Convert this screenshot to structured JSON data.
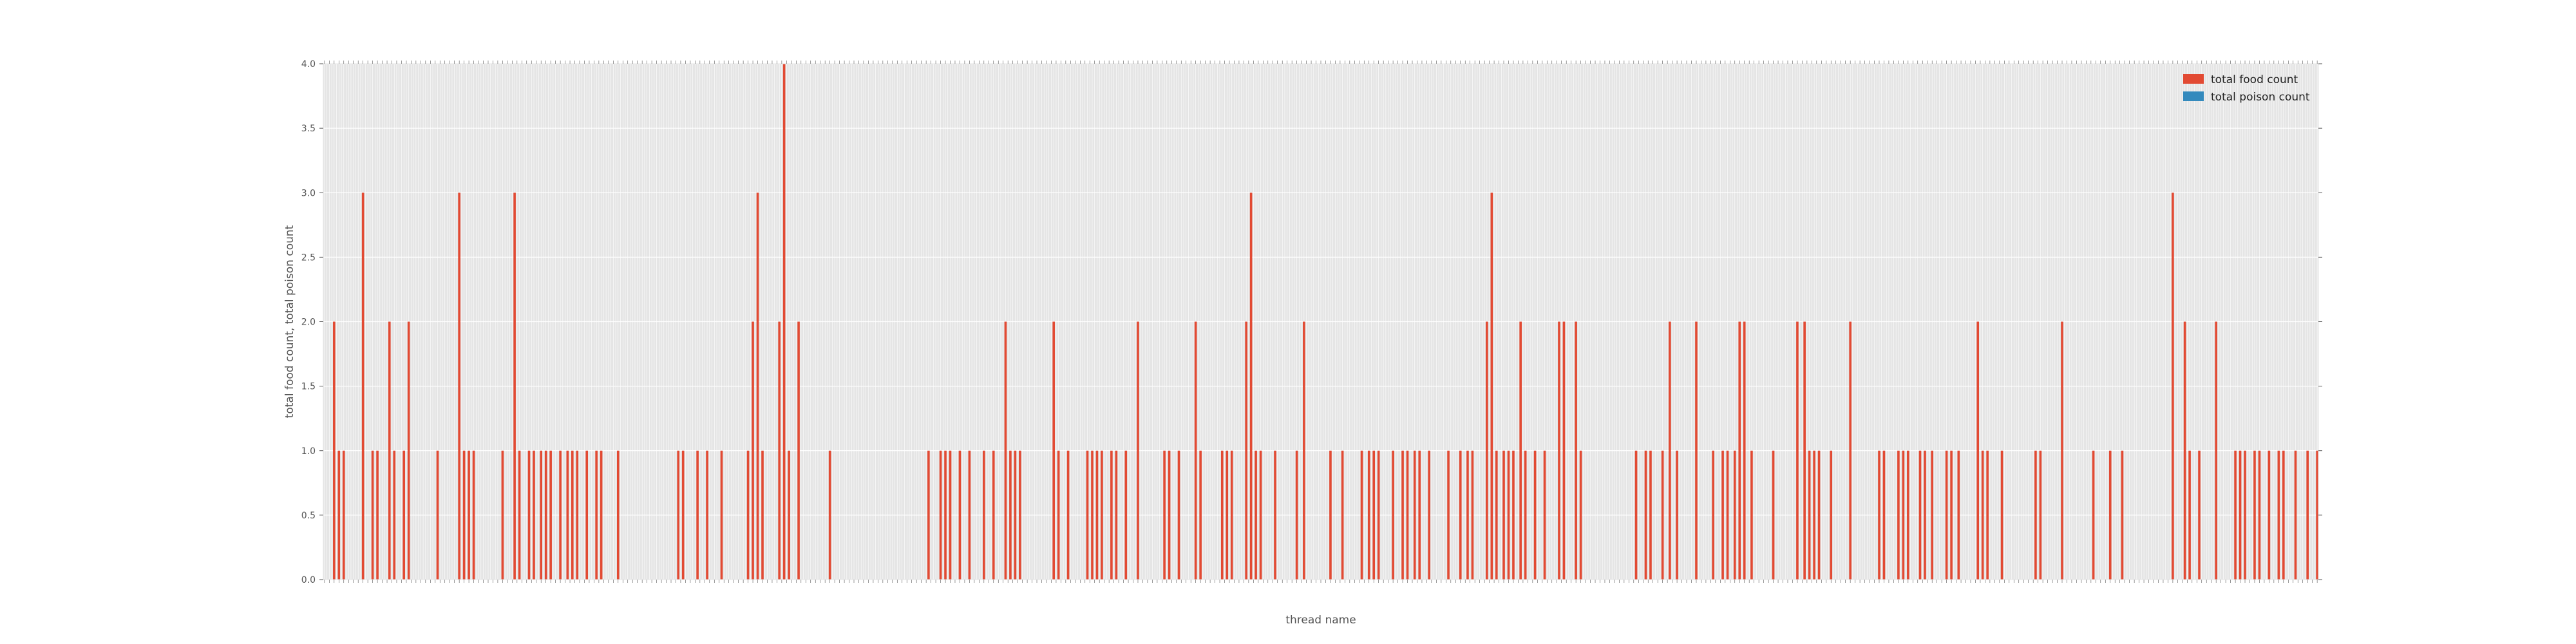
{
  "chart_data": {
    "type": "bar",
    "xlabel": "thread name",
    "ylabel": "total food count, total poison count",
    "ylim": [
      0,
      4.0
    ],
    "y_ticks": [
      "0.0",
      "0.5",
      "1.0",
      "1.5",
      "2.0",
      "2.5",
      "3.0",
      "3.5",
      "4.0"
    ],
    "grid": true,
    "legend_position": "top-right",
    "colors": {
      "total food count": "#E24A33",
      "total poison count": "#348ABD",
      "plot_bg": "#E5E5E5",
      "grid": "#FFFFFF"
    },
    "series": [
      {
        "name": "total food count",
        "values": [
          0,
          0,
          0,
          0,
          2,
          0,
          1,
          0,
          1,
          0,
          0,
          0,
          0,
          0,
          0,
          0,
          3,
          0,
          0,
          0,
          1,
          0,
          1,
          0,
          0,
          0,
          0,
          2,
          0,
          1,
          0,
          0,
          0,
          1,
          0,
          2,
          0,
          0,
          0,
          0,
          0,
          0,
          0,
          0,
          0,
          0,
          0,
          1,
          0,
          0,
          0,
          0,
          0,
          0,
          0,
          0,
          3,
          0,
          1,
          0,
          1,
          0,
          1,
          0,
          0,
          0,
          0,
          0,
          0,
          0,
          0,
          0,
          0,
          0,
          1,
          0,
          0,
          0,
          0,
          3,
          0,
          1,
          0,
          0,
          0,
          1,
          0,
          1,
          0,
          0,
          1,
          0,
          1,
          0,
          1,
          0,
          0,
          0,
          1,
          0,
          0,
          1,
          0,
          1,
          0,
          1,
          0,
          0,
          0,
          1,
          0,
          0,
          0,
          1,
          0,
          1,
          0,
          0,
          0,
          0,
          0,
          0,
          1,
          0,
          0,
          0,
          0,
          0,
          0,
          0,
          0,
          0,
          0,
          0,
          0,
          0,
          0,
          0,
          0,
          0,
          0,
          0,
          0,
          0,
          0,
          0,
          0,
          1,
          0,
          1,
          0,
          0,
          0,
          0,
          0,
          1,
          0,
          0,
          0,
          1,
          0,
          0,
          0,
          0,
          0,
          1,
          0,
          0,
          0,
          0,
          0,
          0,
          0,
          0,
          0,
          0,
          1,
          0,
          2,
          0,
          3,
          0,
          1,
          0,
          0,
          0,
          0,
          0,
          0,
          2,
          0,
          4,
          0,
          1,
          0,
          0,
          0,
          2,
          0,
          0,
          0,
          0,
          0,
          0,
          0,
          0,
          0,
          0,
          0,
          0,
          1,
          0,
          0,
          0,
          0,
          0,
          0,
          0,
          0,
          0,
          0,
          0,
          0,
          0,
          0,
          0,
          0,
          0,
          0,
          0,
          0,
          0,
          0,
          0,
          0,
          0,
          0,
          0,
          0,
          0,
          0,
          0,
          0,
          0,
          0,
          0,
          0,
          0,
          0,
          0,
          0,
          1,
          0,
          0,
          0,
          0,
          1,
          0,
          1,
          0,
          1,
          0,
          0,
          0,
          1,
          0,
          0,
          0,
          1,
          0,
          0,
          0,
          0,
          0,
          1,
          0,
          0,
          0,
          1,
          0,
          0,
          0,
          0,
          2,
          0,
          1,
          0,
          1,
          0,
          1,
          0,
          0,
          0,
          0,
          0,
          0,
          0,
          0,
          0,
          0,
          0,
          0,
          0,
          2,
          0,
          1,
          0,
          0,
          0,
          1,
          0,
          0,
          0,
          0,
          0,
          0,
          0,
          1,
          0,
          1,
          0,
          1,
          0,
          1,
          0,
          0,
          0,
          1,
          0,
          1,
          0,
          0,
          0,
          1,
          0,
          0,
          0,
          0,
          2,
          0,
          0,
          0,
          0,
          0,
          0,
          0,
          0,
          0,
          0,
          1,
          0,
          1,
          0,
          0,
          0,
          1,
          0,
          0,
          0,
          0,
          0,
          0,
          2,
          0,
          1,
          0,
          0,
          0,
          0,
          0,
          0,
          0,
          0,
          1,
          0,
          1,
          0,
          1,
          0,
          0,
          0,
          0,
          0,
          2,
          0,
          3,
          0,
          1,
          0,
          1,
          0,
          0,
          0,
          0,
          0,
          1,
          0,
          0,
          0,
          0,
          0,
          0,
          0,
          0,
          1,
          0,
          0,
          2,
          0,
          0,
          0,
          0,
          0,
          0,
          0,
          0,
          0,
          0,
          1,
          0,
          0,
          0,
          0,
          1,
          0,
          0,
          0,
          0,
          0,
          0,
          0,
          1,
          0,
          0,
          1,
          0,
          1,
          0,
          1,
          0,
          0,
          0,
          0,
          0,
          1,
          0,
          0,
          0,
          1,
          0,
          1,
          0,
          0,
          1,
          0,
          1,
          0,
          0,
          0,
          1,
          0,
          0,
          0,
          0,
          0,
          0,
          0,
          1,
          0,
          0,
          0,
          0,
          1,
          0,
          0,
          1,
          0,
          1,
          0,
          0,
          0,
          0,
          0,
          2,
          0,
          3,
          0,
          1,
          0,
          0,
          1,
          0,
          1,
          0,
          1,
          0,
          0,
          2,
          0,
          1,
          0,
          0,
          0,
          1,
          0,
          0,
          0,
          1,
          0,
          0,
          0,
          0,
          0,
          2,
          0,
          2,
          0,
          0,
          0,
          0,
          2,
          0,
          1,
          0,
          0,
          0,
          0,
          0,
          0,
          0,
          0,
          0,
          0,
          0,
          0,
          0,
          0,
          0,
          0,
          0,
          0,
          0,
          0,
          0,
          0,
          1,
          0,
          0,
          0,
          1,
          0,
          1,
          0,
          0,
          0,
          0,
          1,
          0,
          0,
          2,
          0,
          0,
          1,
          0,
          0,
          0,
          0,
          0,
          0,
          0,
          2,
          0,
          0,
          0,
          0,
          0,
          0,
          1,
          0,
          0,
          0,
          1,
          0,
          1,
          0,
          0,
          1,
          0,
          2,
          0,
          2,
          0,
          0,
          1,
          0,
          0,
          0,
          0,
          0,
          0,
          0,
          0,
          1,
          0,
          0,
          0,
          0,
          0,
          0,
          0,
          0,
          0,
          2,
          0,
          0,
          2,
          0,
          1,
          0,
          1,
          0,
          1,
          0,
          0,
          0,
          0,
          1,
          0,
          0,
          0,
          0,
          0,
          0,
          0,
          2,
          0,
          0,
          0,
          0,
          0,
          0,
          0,
          0,
          0,
          0,
          0,
          1,
          0,
          1,
          0,
          0,
          0,
          0,
          0,
          1,
          0,
          1,
          0,
          1,
          0,
          0,
          0,
          0,
          1,
          0,
          1,
          0,
          0,
          1,
          0,
          0,
          0,
          0,
          0,
          1,
          0,
          1,
          0,
          0,
          1,
          0,
          0,
          0,
          0,
          0,
          0,
          0,
          2,
          0,
          1,
          0,
          1,
          0,
          0,
          0,
          0,
          0,
          1,
          0,
          0,
          0,
          0,
          0,
          0,
          0,
          0,
          0,
          0,
          0,
          0,
          0,
          1,
          0,
          1,
          0,
          0,
          0,
          0,
          0,
          0,
          0,
          0,
          2,
          0,
          0,
          0,
          0,
          0,
          0,
          0,
          0,
          0,
          0,
          0,
          0,
          1,
          0,
          0,
          0,
          0,
          0,
          0,
          1,
          0,
          0,
          0,
          0,
          1,
          0,
          0,
          0,
          0,
          0,
          0,
          0,
          0,
          0,
          0,
          0,
          0,
          0,
          0,
          0,
          0,
          0,
          0,
          0,
          0,
          3,
          0,
          0,
          0,
          0,
          2,
          0,
          1,
          0,
          0,
          0,
          1,
          0,
          0,
          0,
          0,
          0,
          0,
          2,
          0,
          0,
          0,
          0,
          0,
          0,
          0,
          1,
          0,
          1,
          0,
          1,
          0,
          0,
          0,
          1,
          0,
          1,
          0,
          0,
          0,
          1,
          0,
          0,
          0,
          1,
          0,
          1,
          0,
          0,
          0,
          0,
          1,
          0,
          0,
          0,
          0,
          1,
          0,
          0,
          0,
          1
        ]
      },
      {
        "name": "total poison count",
        "values": []
      }
    ]
  }
}
